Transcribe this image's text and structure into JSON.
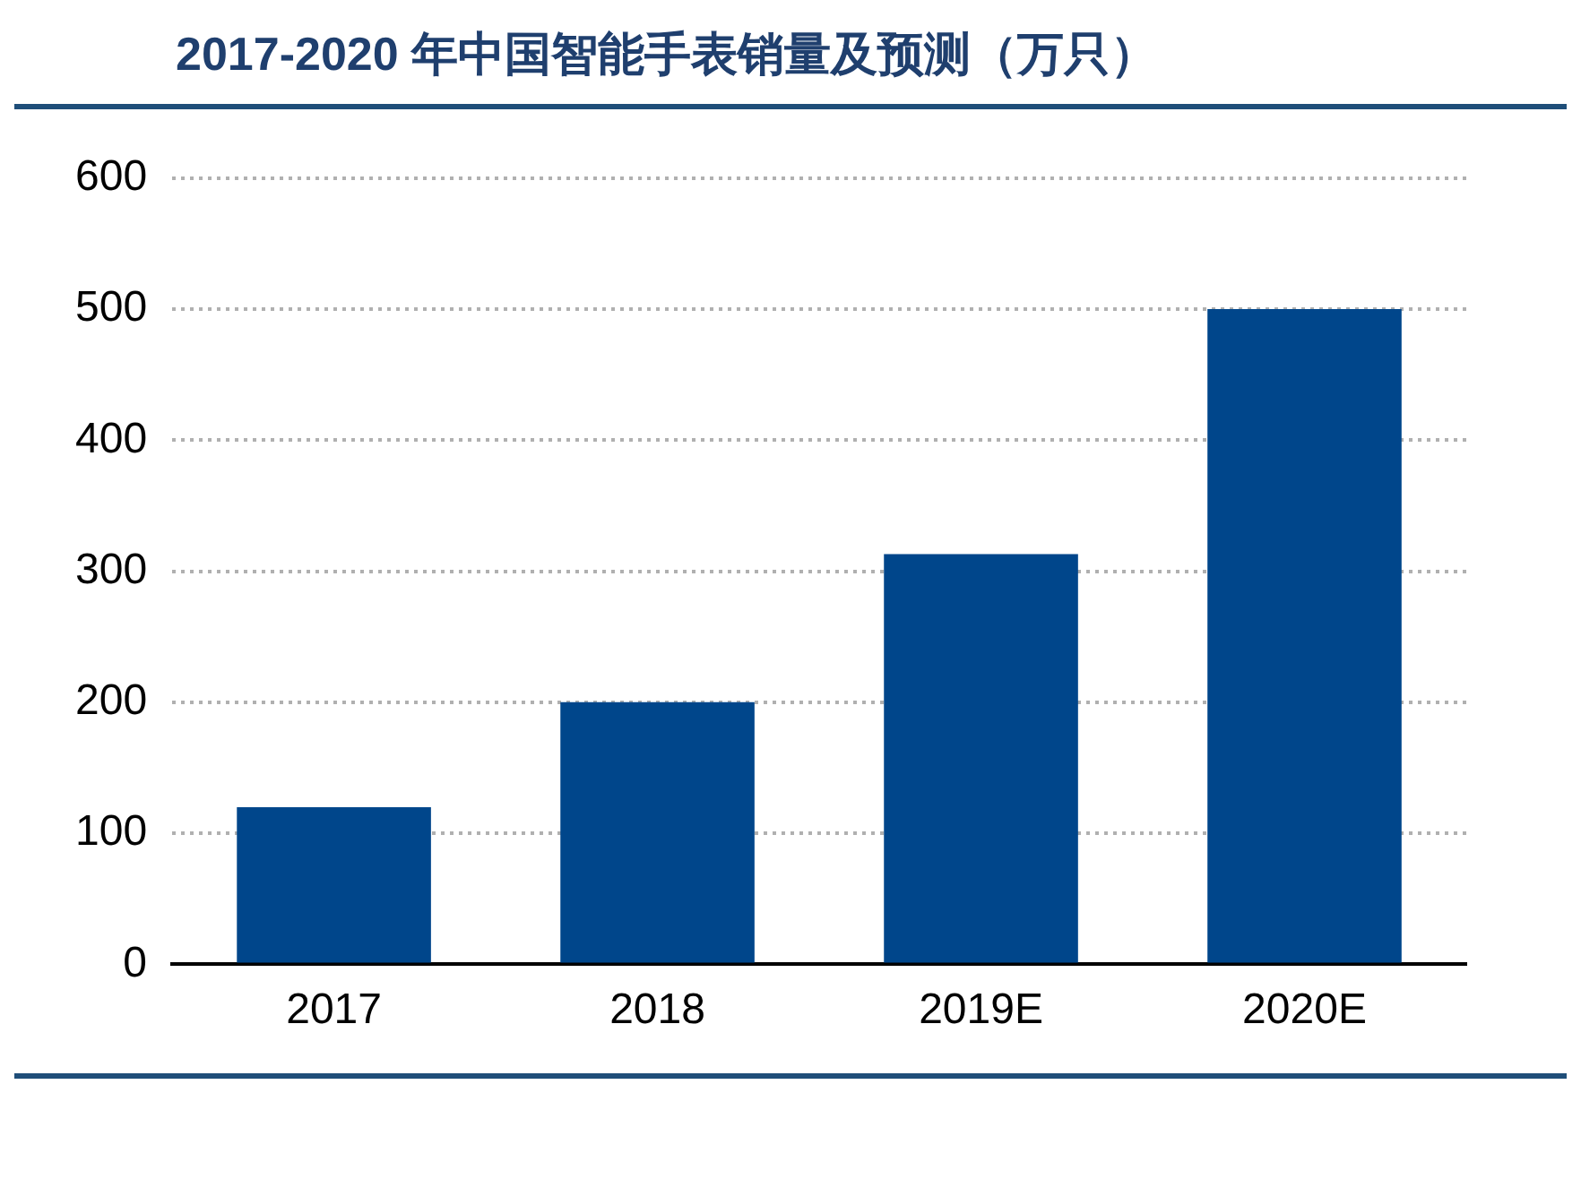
{
  "chart_data": {
    "type": "bar",
    "title": "2017-2020 年中国智能手表销量及预测（万只）",
    "categories": [
      "2017",
      "2018",
      "2019E",
      "2020E"
    ],
    "values": [
      120,
      200,
      313,
      500
    ],
    "color": "#00468b",
    "ylim": [
      0,
      600
    ],
    "yticks": [
      0,
      100,
      200,
      300,
      400,
      500,
      600
    ],
    "grid": "y",
    "legend": false
  }
}
